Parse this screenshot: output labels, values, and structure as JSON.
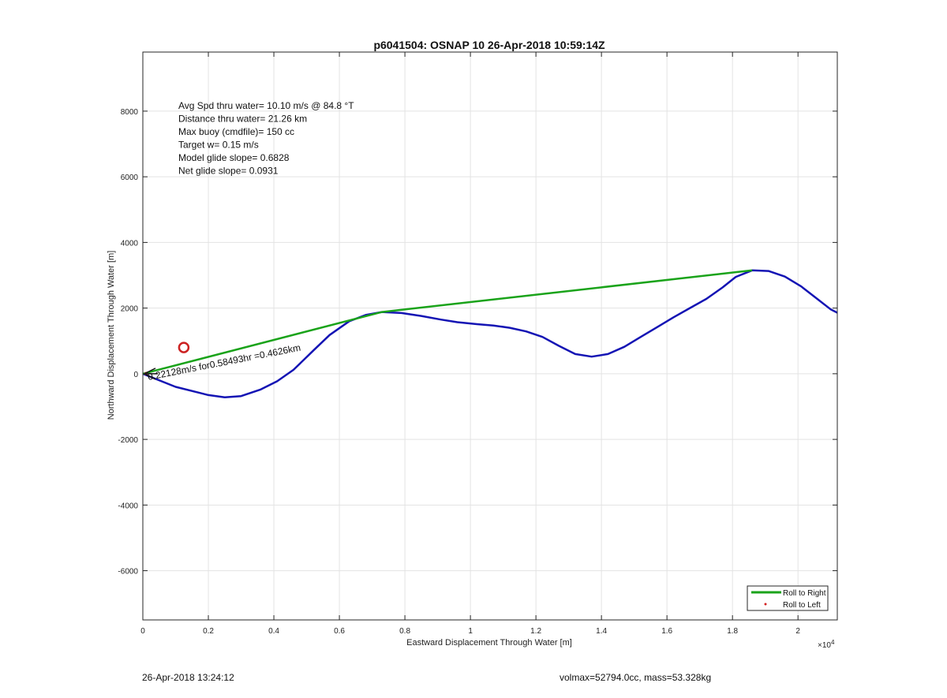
{
  "chart_data": {
    "type": "line",
    "title": "p6041504: OSNAP 10 26-Apr-2018 10:59:14Z",
    "xlabel": "Eastward Displacement Through Water [m]",
    "ylabel": "Northward Displacement Through Water [m]",
    "x_exponent_label": "×10",
    "x_exponent": "4",
    "xlim": [
      0,
      21200
    ],
    "ylim": [
      -7500,
      9800
    ],
    "x_ticks": [
      0,
      2000,
      4000,
      6000,
      8000,
      10000,
      12000,
      14000,
      16000,
      18000,
      20000
    ],
    "x_tick_labels": [
      "0",
      "0.2",
      "0.4",
      "0.6",
      "0.8",
      "1",
      "1.2",
      "1.4",
      "1.6",
      "1.8",
      "2"
    ],
    "y_ticks": [
      -6000,
      -4000,
      -2000,
      0,
      2000,
      4000,
      6000,
      8000
    ],
    "y_tick_labels": [
      "-6000",
      "-4000",
      "-2000",
      "0",
      "2000",
      "4000",
      "6000",
      "8000"
    ],
    "grid": true,
    "legend_position": "bottom-right",
    "series": [
      {
        "name": "Roll to Right",
        "color": "#1aa31a",
        "x": [
          0,
          7300,
          18600
        ],
        "y": [
          0,
          1880,
          3150
        ]
      },
      {
        "name": "Roll to Left",
        "color": "#d42020",
        "x": [
          100
        ],
        "y": [
          0
        ]
      }
    ],
    "track": {
      "color": "#1414b4",
      "x": [
        0,
        1000,
        2000,
        2500,
        3000,
        3600,
        4100,
        4600,
        5200,
        5700,
        6300,
        6800,
        7300,
        7900,
        8500,
        9100,
        9600,
        10200,
        10700,
        11200,
        11700,
        12200,
        12700,
        13200,
        13700,
        14200,
        14700,
        15200,
        15700,
        16200,
        16700,
        17200,
        17700,
        18100,
        18600,
        19100,
        19600,
        20100,
        20600,
        21000,
        21200
      ],
      "y": [
        0,
        -400,
        -650,
        -720,
        -680,
        -480,
        -230,
        120,
        700,
        1180,
        1600,
        1790,
        1880,
        1850,
        1760,
        1650,
        1570,
        1510,
        1470,
        1400,
        1290,
        1120,
        850,
        600,
        520,
        600,
        820,
        1120,
        1420,
        1720,
        2000,
        2280,
        2630,
        2950,
        3150,
        3130,
        2960,
        2660,
        2270,
        1960,
        1860
      ]
    },
    "marker": {
      "color": "#cc2222",
      "x": 1250,
      "y": 800
    },
    "current_vector": {
      "label": "0.22128m/s for0.58493hr =0.4626km",
      "x": [
        0,
        460
      ],
      "y": [
        0,
        0
      ]
    },
    "annotations": [
      "Avg Spd thru water= 10.10 m/s @  84.8 °T",
      "Distance thru water= 21.26 km",
      "Max buoy (cmdfile)= 150 cc",
      "Target w= 0.15 m/s",
      "Model glide slope= 0.6828",
      "Net glide slope= 0.0931"
    ]
  },
  "footer": {
    "left": "26-Apr-2018 13:24:12",
    "right": "volmax=52794.0cc, mass=53.328kg"
  }
}
